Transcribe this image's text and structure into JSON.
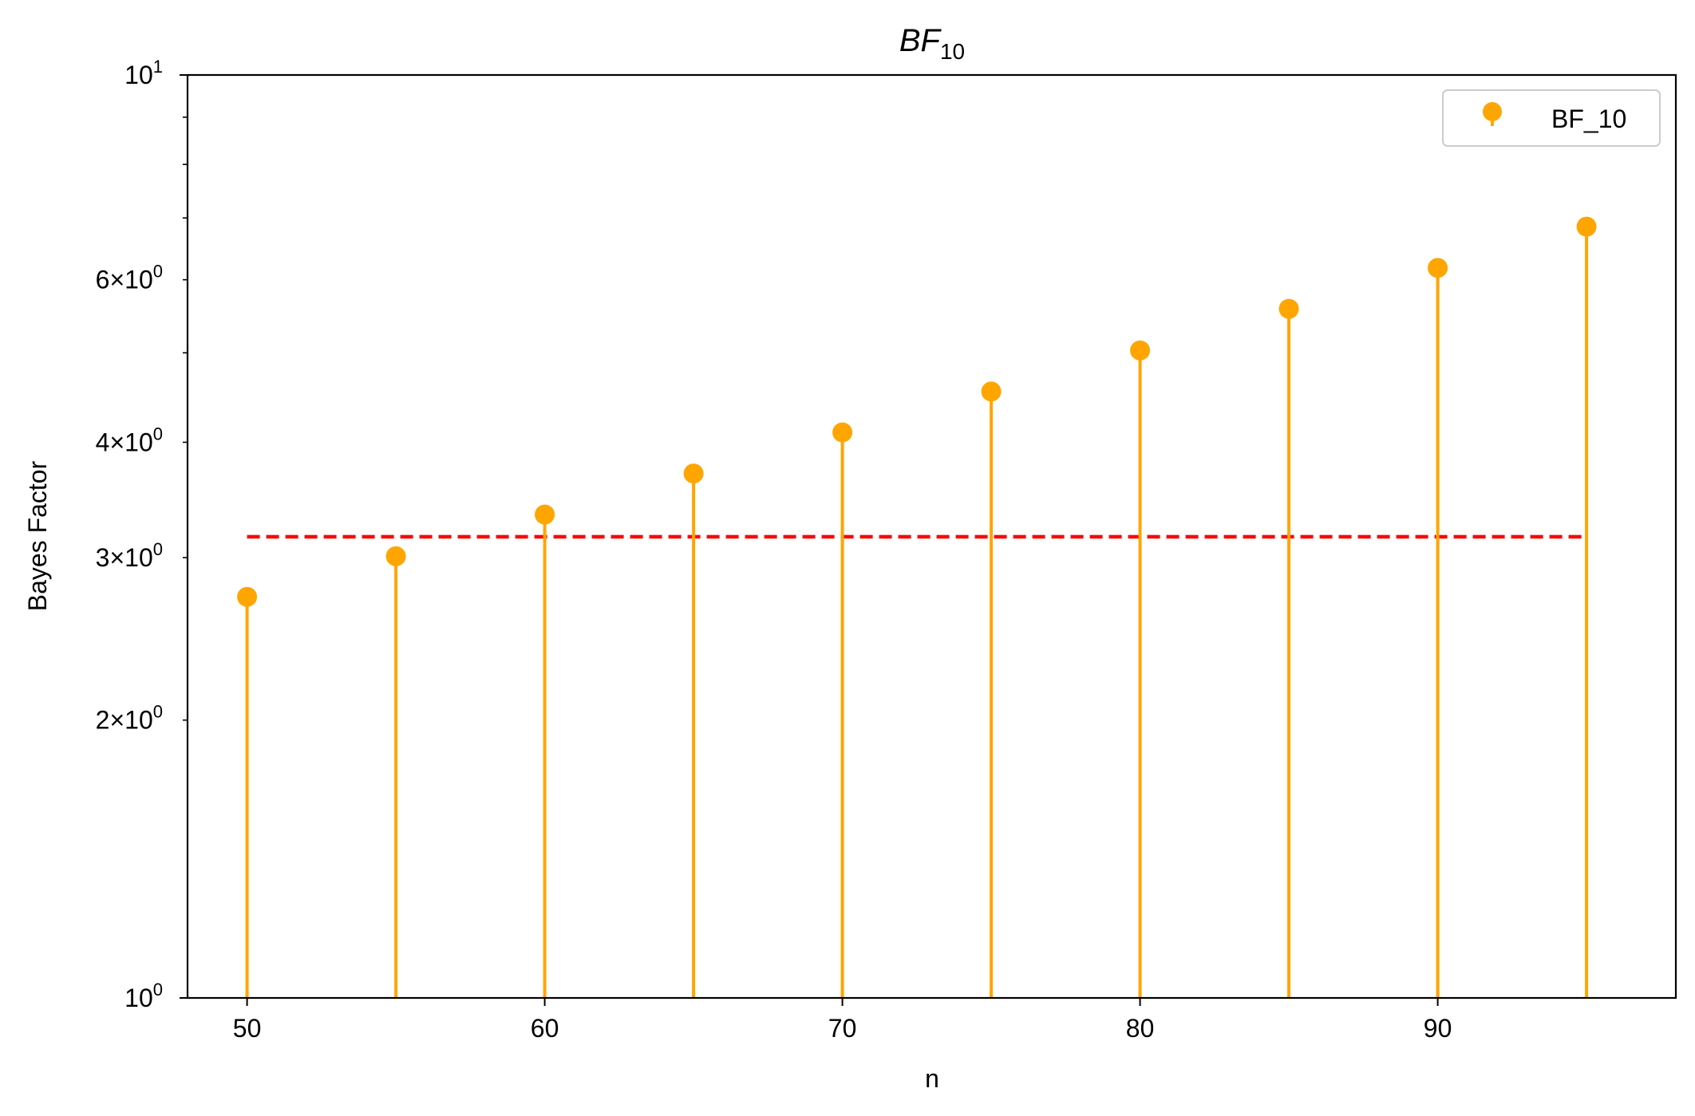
{
  "chart_data": {
    "type": "stem",
    "title": "BF",
    "title_subscript": "10",
    "xlabel": "n",
    "ylabel": "Bayes Factor",
    "yscale": "log",
    "xlim": [
      48,
      98
    ],
    "ylim": [
      1,
      10
    ],
    "x": [
      50,
      55,
      60,
      65,
      70,
      75,
      80,
      85,
      90,
      95
    ],
    "series": [
      {
        "name": "BF_10",
        "color": "#ffa500",
        "values": [
          2.72,
          3.01,
          3.34,
          3.7,
          4.1,
          4.54,
          5.03,
          5.58,
          6.18,
          6.85
        ]
      }
    ],
    "reference_line": {
      "y": 3.16,
      "color": "#ff0000",
      "style": "dashed",
      "x_range": [
        50,
        95
      ]
    },
    "x_ticks": [
      {
        "value": 50,
        "label": "50"
      },
      {
        "value": 60,
        "label": "60"
      },
      {
        "value": 70,
        "label": "70"
      },
      {
        "value": 80,
        "label": "80"
      },
      {
        "value": 90,
        "label": "90"
      }
    ],
    "y_ticks_major": [
      {
        "value": 1,
        "base": "10",
        "exp": "0"
      },
      {
        "value": 10,
        "base": "10",
        "exp": "1"
      }
    ],
    "y_ticks_minor": [
      {
        "value": 2,
        "coef": "2",
        "base": "10",
        "exp": "0",
        "labeled": true
      },
      {
        "value": 3,
        "coef": "3",
        "base": "10",
        "exp": "0",
        "labeled": true
      },
      {
        "value": 4,
        "coef": "4",
        "base": "10",
        "exp": "0",
        "labeled": true
      },
      {
        "value": 5,
        "labeled": false
      },
      {
        "value": 6,
        "coef": "6",
        "base": "10",
        "exp": "0",
        "labeled": true
      },
      {
        "value": 7,
        "labeled": false
      },
      {
        "value": 8,
        "labeled": false
      },
      {
        "value": 9,
        "labeled": false
      }
    ],
    "legend": {
      "position": "top-right",
      "entries": [
        "BF_10"
      ]
    },
    "grid": false
  }
}
